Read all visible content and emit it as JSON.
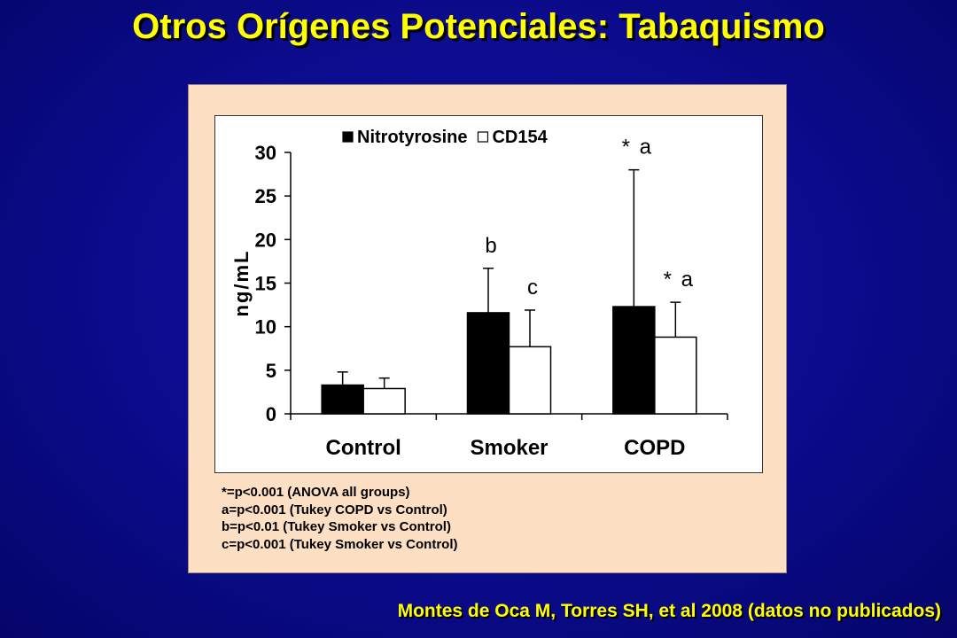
{
  "slide": {
    "title": "Otros Orígenes Potenciales: Tabaquismo",
    "citation": "Montes de Oca M, Torres SH, et al 2008 (datos no publicados)"
  },
  "notes": [
    "*=p<0.001 (ANOVA all groups)",
    "a=p<0.001 (Tukey COPD vs Control)",
    "b=p<0.01 (Tukey Smoker vs Control)",
    "c=p<0.001 (Tukey Smoker vs Control)"
  ],
  "colors": {
    "background": "#0b0b8c",
    "title": "#ffff00",
    "panel": "#fde0c3",
    "nitrotyrosine_bar": "#000000",
    "cd154_bar": "#ffffff"
  },
  "chart_data": {
    "type": "bar",
    "categories": [
      "Control",
      "Smoker",
      "COPD"
    ],
    "ylabel": "ng/mL",
    "ylim": [
      0,
      30
    ],
    "yticks": [
      0,
      5,
      10,
      15,
      20,
      25,
      30
    ],
    "grid": false,
    "legend_position": "top",
    "series": [
      {
        "name": "Nitrotyrosine",
        "values": [
          3.3,
          11.6,
          12.3
        ],
        "error": [
          1.5,
          5.1,
          15.7
        ],
        "annotations": [
          "",
          "b",
          "* a"
        ]
      },
      {
        "name": "CD154",
        "values": [
          2.9,
          7.7,
          8.8
        ],
        "error": [
          1.2,
          4.2,
          4.0
        ],
        "annotations": [
          "",
          "c",
          "* a"
        ]
      }
    ]
  }
}
